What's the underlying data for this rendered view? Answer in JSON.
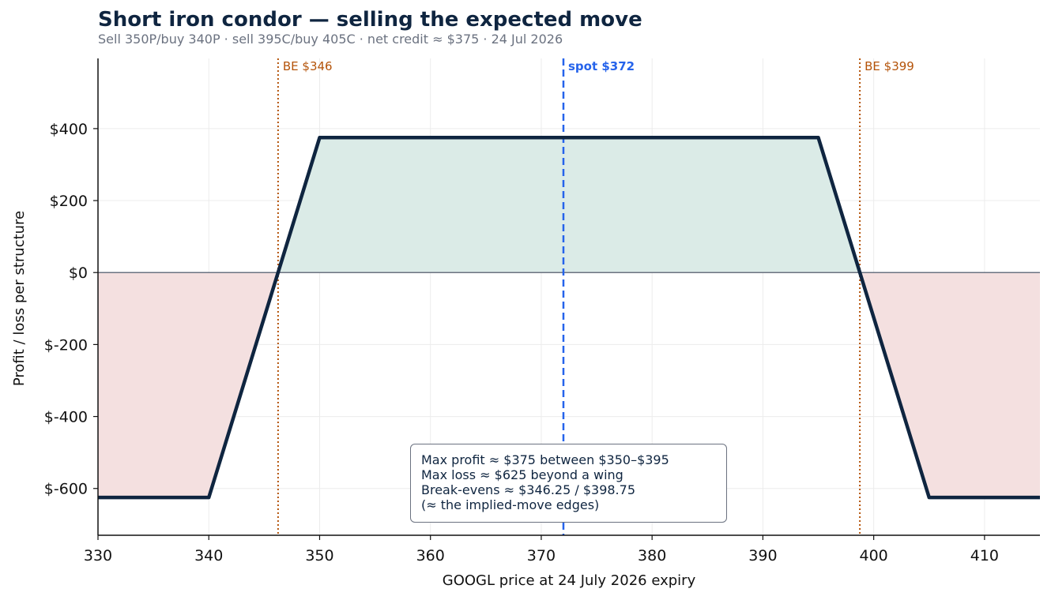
{
  "chart_data": {
    "type": "line",
    "title": "Short iron condor — selling the expected move",
    "subtitle": "Sell 350P/buy 340P · sell 395C/buy 405C · net credit ≈ $375 · 24 Jul 2026",
    "xlabel": "GOOGL price at 24 July 2026 expiry",
    "ylabel": "Profit / loss per structure",
    "xlim": [
      330,
      415
    ],
    "ylim": [
      -730,
      595
    ],
    "x_ticks": [
      330,
      340,
      350,
      360,
      370,
      380,
      390,
      400,
      410
    ],
    "y_ticks": [
      -600,
      -400,
      -200,
      0,
      200,
      400
    ],
    "y_tick_labels": [
      "$-600",
      "$-400",
      "$-200",
      "$0",
      "$200",
      "$400"
    ],
    "grid": true,
    "series": [
      {
        "x": [
          330,
          340,
          350,
          395,
          405,
          415
        ],
        "y": [
          -625,
          -625,
          375,
          375,
          -625,
          -625
        ],
        "color": "#0f2540"
      }
    ],
    "profit_fill_color": "#dbebe7",
    "loss_fill_color": "#f4e0e0",
    "vertical_lines": [
      {
        "x": 346.25,
        "label": "BE $346",
        "color": "#b45309",
        "style": "dotted"
      },
      {
        "x": 372,
        "label": "spot $372",
        "color": "#2563eb",
        "style": "dashed"
      },
      {
        "x": 398.75,
        "label": "BE $399",
        "color": "#b45309",
        "style": "dotted"
      }
    ],
    "annotation": [
      "Max profit ≈ $375 between $350–$395",
      "Max loss ≈ $625 beyond a wing",
      "Break-evens ≈ $346.25 / $398.75",
      "(≈ the implied-move edges)"
    ]
  }
}
